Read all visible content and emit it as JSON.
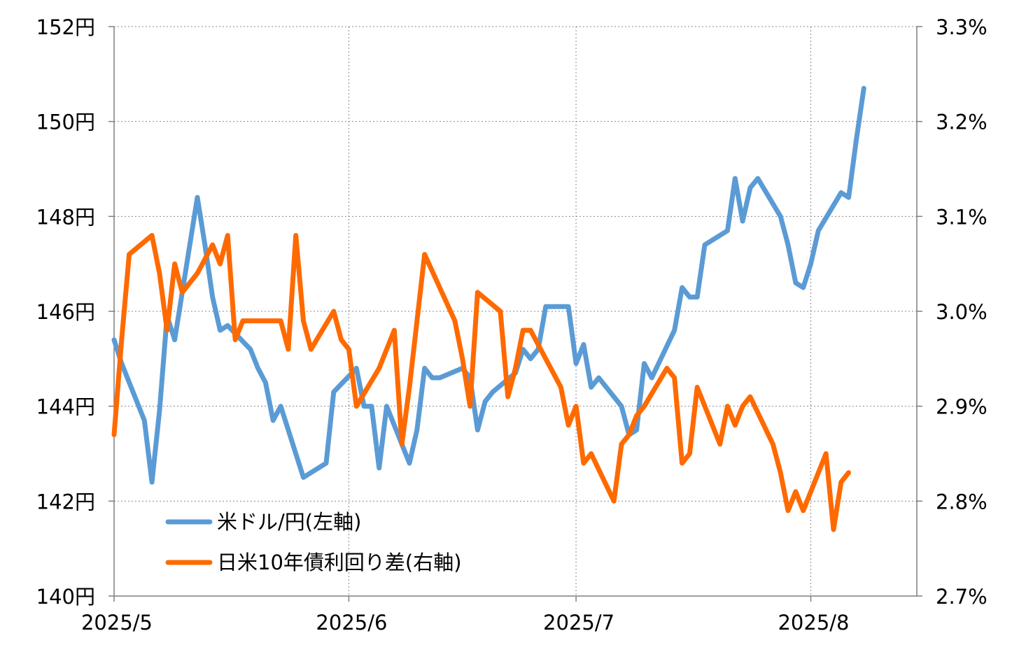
{
  "chart_data": {
    "type": "line",
    "title": "",
    "x_ticks": [
      "2025/5",
      "2025/6",
      "2025/7",
      "2025/8"
    ],
    "x_range": [
      "2025-05-01",
      "2025-08-15"
    ],
    "y_left": {
      "ticks": [
        "140円",
        "142円",
        "144円",
        "146円",
        "148円",
        "150円",
        "152円"
      ],
      "ylim": [
        140,
        152
      ]
    },
    "y_right": {
      "ticks": [
        "2.7%",
        "2.8%",
        "2.9%",
        "3.0%",
        "3.1%",
        "3.2%",
        "3.3%"
      ],
      "ylim": [
        2.7,
        3.3
      ]
    },
    "grid": true,
    "legend_position": "bottom-left",
    "series": [
      {
        "name": "米ドル/円(左軸)",
        "axis": "left",
        "color": "#5b9bd5",
        "points": [
          [
            "2025-05-01",
            145.4
          ],
          [
            "2025-05-02",
            144.9
          ],
          [
            "2025-05-05",
            143.7
          ],
          [
            "2025-05-06",
            142.4
          ],
          [
            "2025-05-07",
            143.9
          ],
          [
            "2025-05-08",
            145.9
          ],
          [
            "2025-05-09",
            145.4
          ],
          [
            "2025-05-12",
            148.4
          ],
          [
            "2025-05-13",
            147.4
          ],
          [
            "2025-05-14",
            146.3
          ],
          [
            "2025-05-15",
            145.6
          ],
          [
            "2025-05-16",
            145.7
          ],
          [
            "2025-05-19",
            145.2
          ],
          [
            "2025-05-20",
            144.8
          ],
          [
            "2025-05-21",
            144.5
          ],
          [
            "2025-05-22",
            143.7
          ],
          [
            "2025-05-23",
            144.0
          ],
          [
            "2025-05-26",
            142.5
          ],
          [
            "2025-05-27",
            142.6
          ],
          [
            "2025-05-28",
            142.7
          ],
          [
            "2025-05-29",
            142.8
          ],
          [
            "2025-05-30",
            144.3
          ],
          [
            "2025-06-02",
            144.8
          ],
          [
            "2025-06-03",
            144.0
          ],
          [
            "2025-06-04",
            144.0
          ],
          [
            "2025-06-05",
            142.7
          ],
          [
            "2025-06-06",
            144.0
          ],
          [
            "2025-06-09",
            142.8
          ],
          [
            "2025-06-10",
            143.5
          ],
          [
            "2025-06-11",
            144.8
          ],
          [
            "2025-06-12",
            144.6
          ],
          [
            "2025-06-13",
            144.6
          ],
          [
            "2025-06-16",
            144.8
          ],
          [
            "2025-06-17",
            144.6
          ],
          [
            "2025-06-18",
            143.5
          ],
          [
            "2025-06-19",
            144.1
          ],
          [
            "2025-06-20",
            144.3
          ],
          [
            "2025-06-23",
            144.7
          ],
          [
            "2025-06-24",
            145.2
          ],
          [
            "2025-06-25",
            145.0
          ],
          [
            "2025-06-26",
            145.2
          ],
          [
            "2025-06-27",
            146.1
          ],
          [
            "2025-06-30",
            146.1
          ],
          [
            "2025-07-01",
            144.9
          ],
          [
            "2025-07-02",
            145.3
          ],
          [
            "2025-07-03",
            144.4
          ],
          [
            "2025-07-04",
            144.6
          ],
          [
            "2025-07-07",
            144.0
          ],
          [
            "2025-07-08",
            143.4
          ],
          [
            "2025-07-09",
            143.5
          ],
          [
            "2025-07-10",
            144.9
          ],
          [
            "2025-07-11",
            144.6
          ],
          [
            "2025-07-14",
            145.6
          ],
          [
            "2025-07-15",
            146.5
          ],
          [
            "2025-07-16",
            146.3
          ],
          [
            "2025-07-17",
            146.3
          ],
          [
            "2025-07-18",
            147.4
          ],
          [
            "2025-07-21",
            147.7
          ],
          [
            "2025-07-22",
            148.8
          ],
          [
            "2025-07-23",
            147.9
          ],
          [
            "2025-07-24",
            148.6
          ],
          [
            "2025-07-25",
            148.8
          ],
          [
            "2025-07-28",
            148.0
          ],
          [
            "2025-07-29",
            147.4
          ],
          [
            "2025-07-30",
            146.6
          ],
          [
            "2025-07-31",
            146.5
          ],
          [
            "2025-08-01",
            147.0
          ],
          [
            "2025-08-02",
            147.7
          ],
          [
            "2025-08-05",
            148.5
          ],
          [
            "2025-08-06",
            148.4
          ],
          [
            "2025-08-07",
            149.6
          ],
          [
            "2025-08-08",
            150.7
          ]
        ]
      },
      {
        "name": "日米10年債利回り差(右軸)",
        "axis": "right",
        "color": "#ff6a00",
        "points": [
          [
            "2025-05-01",
            2.87
          ],
          [
            "2025-05-02",
            2.97
          ],
          [
            "2025-05-03",
            3.06
          ],
          [
            "2025-05-06",
            3.08
          ],
          [
            "2025-05-07",
            3.04
          ],
          [
            "2025-05-08",
            2.98
          ],
          [
            "2025-05-09",
            3.05
          ],
          [
            "2025-05-10",
            3.02
          ],
          [
            "2025-05-12",
            3.04
          ],
          [
            "2025-05-14",
            3.07
          ],
          [
            "2025-05-15",
            3.05
          ],
          [
            "2025-05-16",
            3.08
          ],
          [
            "2025-05-17",
            2.97
          ],
          [
            "2025-05-18",
            2.99
          ],
          [
            "2025-05-23",
            2.99
          ],
          [
            "2025-05-24",
            2.96
          ],
          [
            "2025-05-25",
            3.08
          ],
          [
            "2025-05-26",
            2.99
          ],
          [
            "2025-05-27",
            2.96
          ],
          [
            "2025-05-30",
            3.0
          ],
          [
            "2025-05-31",
            2.97
          ],
          [
            "2025-06-01",
            2.96
          ],
          [
            "2025-06-02",
            2.9
          ],
          [
            "2025-06-05",
            2.94
          ],
          [
            "2025-06-06",
            2.96
          ],
          [
            "2025-06-07",
            2.98
          ],
          [
            "2025-06-08",
            2.86
          ],
          [
            "2025-06-09",
            2.92
          ],
          [
            "2025-06-11",
            3.06
          ],
          [
            "2025-06-15",
            2.99
          ],
          [
            "2025-06-16",
            2.95
          ],
          [
            "2025-06-17",
            2.9
          ],
          [
            "2025-06-18",
            3.02
          ],
          [
            "2025-06-21",
            3.0
          ],
          [
            "2025-06-22",
            2.91
          ],
          [
            "2025-06-23",
            2.94
          ],
          [
            "2025-06-24",
            2.98
          ],
          [
            "2025-06-25",
            2.98
          ],
          [
            "2025-06-29",
            2.92
          ],
          [
            "2025-06-30",
            2.88
          ],
          [
            "2025-07-01",
            2.9
          ],
          [
            "2025-07-02",
            2.84
          ],
          [
            "2025-07-03",
            2.85
          ],
          [
            "2025-07-06",
            2.8
          ],
          [
            "2025-07-07",
            2.86
          ],
          [
            "2025-07-08",
            2.87
          ],
          [
            "2025-07-09",
            2.89
          ],
          [
            "2025-07-10",
            2.9
          ],
          [
            "2025-07-13",
            2.94
          ],
          [
            "2025-07-14",
            2.93
          ],
          [
            "2025-07-15",
            2.84
          ],
          [
            "2025-07-16",
            2.85
          ],
          [
            "2025-07-17",
            2.92
          ],
          [
            "2025-07-20",
            2.86
          ],
          [
            "2025-07-21",
            2.9
          ],
          [
            "2025-07-22",
            2.88
          ],
          [
            "2025-07-23",
            2.9
          ],
          [
            "2025-07-24",
            2.91
          ],
          [
            "2025-07-27",
            2.86
          ],
          [
            "2025-07-28",
            2.83
          ],
          [
            "2025-07-29",
            2.79
          ],
          [
            "2025-07-30",
            2.81
          ],
          [
            "2025-07-31",
            2.79
          ],
          [
            "2025-08-03",
            2.85
          ],
          [
            "2025-08-04",
            2.77
          ],
          [
            "2025-08-05",
            2.82
          ],
          [
            "2025-08-06",
            2.83
          ]
        ]
      }
    ]
  }
}
